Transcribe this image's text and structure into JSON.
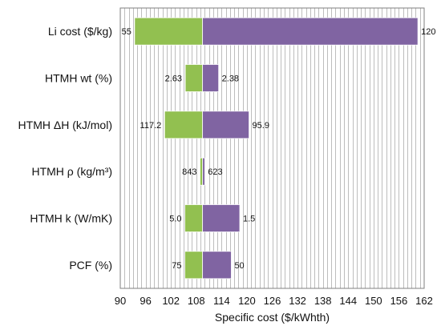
{
  "chart_data": {
    "type": "bar",
    "orientation": "horizontal",
    "style": "tornado",
    "baseline": 109.5,
    "categories": [
      "Li cost ($/kg)",
      "HTMH wt (%)",
      "HTMH ΔH (kJ/mol)",
      "HTMH ρ (kg/m³)",
      "HTMH k (W/mK)",
      "PCF (%)"
    ],
    "series": [
      {
        "color": "#92c050",
        "side": "low",
        "values": [
          93.4,
          105.4,
          100.5,
          108.9,
          105.3,
          105.3
        ],
        "labels": [
          "55",
          "2.63",
          "117.2",
          "843",
          "5.0",
          "75"
        ]
      },
      {
        "color": "#8064a2",
        "side": "high",
        "values": [
          160.5,
          113.3,
          120.5,
          110.0,
          118.3,
          116.3
        ],
        "labels": [
          "120",
          "2.38",
          "95.9",
          "623",
          "1.5",
          "50"
        ]
      }
    ],
    "xlabel": "Specific cost ($/kWhth)",
    "ylabel": "",
    "xlim": [
      90,
      162
    ],
    "xticks": [
      "90",
      "96",
      "102",
      "108",
      "114",
      "120",
      "126",
      "132",
      "138",
      "144",
      "150",
      "156",
      "162"
    ],
    "grid": {
      "vertical": true,
      "minor_step": 1
    },
    "legend": "none"
  }
}
